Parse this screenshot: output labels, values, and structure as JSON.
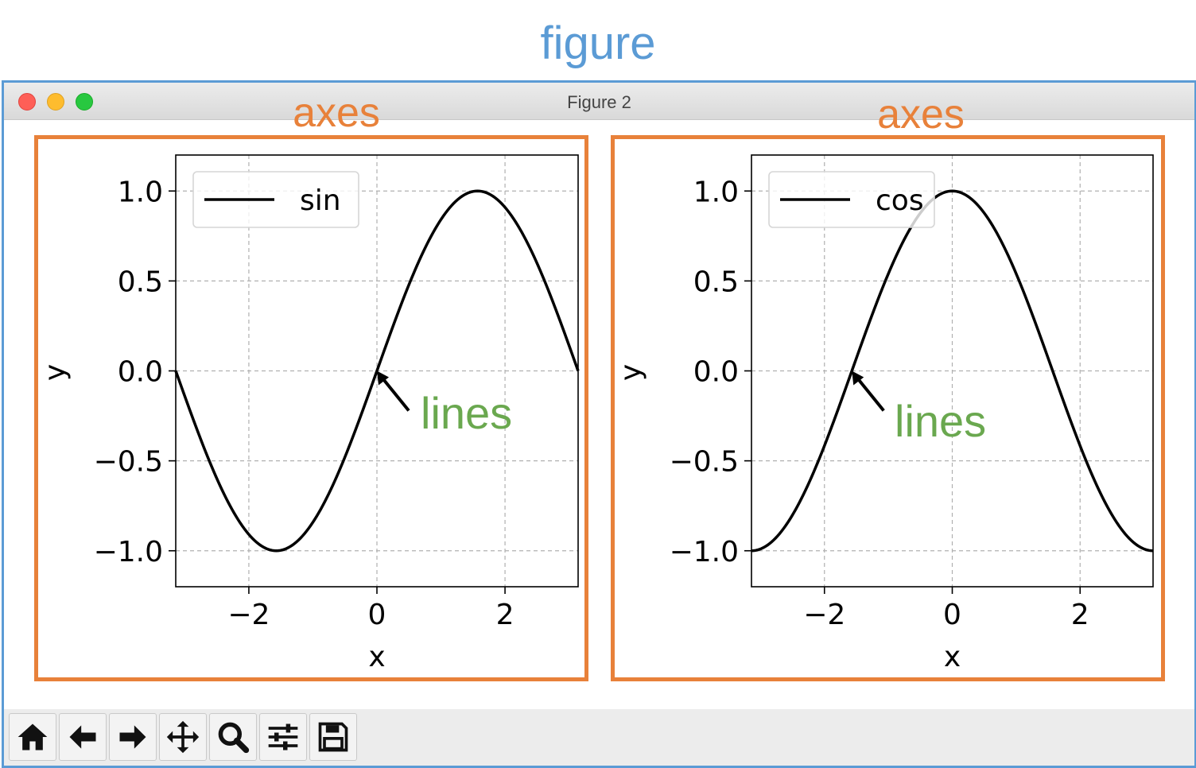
{
  "figure_label": "figure",
  "axes_label": "axes",
  "lines_label": "lines",
  "window": {
    "title": "Figure 2"
  },
  "colors": {
    "figure": "#5b9bd5",
    "axes": "#e8813a",
    "lines": "#6aa84f",
    "series": "#000000",
    "grid": "#b0b0b0"
  },
  "toolbar": {
    "buttons": [
      {
        "name": "home",
        "icon": "home-icon"
      },
      {
        "name": "back",
        "icon": "arrow-left-icon"
      },
      {
        "name": "forward",
        "icon": "arrow-right-icon"
      },
      {
        "name": "pan",
        "icon": "move-icon"
      },
      {
        "name": "zoom",
        "icon": "magnifier-icon"
      },
      {
        "name": "configure-subplots",
        "icon": "sliders-icon"
      },
      {
        "name": "save",
        "icon": "floppy-icon"
      }
    ]
  },
  "chart_data": [
    {
      "type": "line",
      "function": "sin",
      "title": "",
      "xlabel": "x",
      "ylabel": "y",
      "xlim": [
        -3.14159,
        3.14159
      ],
      "ylim": [
        -1.2,
        1.2
      ],
      "xticks": [
        -2,
        0,
        2
      ],
      "xtick_labels": [
        "−2",
        "0",
        "2"
      ],
      "yticks": [
        1.0,
        0.5,
        0.0,
        -0.5,
        -1.0
      ],
      "ytick_labels": [
        "1.0",
        "0.5",
        "0.0",
        "−0.5",
        "−1.0"
      ],
      "grid": true,
      "legend_position": "upper-left",
      "series": [
        {
          "name": "sin",
          "x": [
            -3.1416,
            -2.7489,
            -2.3562,
            -1.9635,
            -1.5708,
            -1.1781,
            -0.7854,
            -0.3927,
            0.0,
            0.3927,
            0.7854,
            1.1781,
            1.5708,
            1.9635,
            2.3562,
            2.7489,
            3.1416
          ],
          "y": [
            0.0,
            -0.3827,
            -0.7071,
            -0.9239,
            -1.0,
            -0.9239,
            -0.7071,
            -0.3827,
            0.0,
            0.3827,
            0.7071,
            0.9239,
            1.0,
            0.9239,
            0.7071,
            0.3827,
            0.0
          ]
        }
      ],
      "annotation": {
        "text": "lines",
        "points_to": [
          0.0,
          0.0
        ]
      }
    },
    {
      "type": "line",
      "function": "cos",
      "title": "",
      "xlabel": "x",
      "ylabel": "y",
      "xlim": [
        -3.14159,
        3.14159
      ],
      "ylim": [
        -1.2,
        1.2
      ],
      "xticks": [
        -2,
        0,
        2
      ],
      "xtick_labels": [
        "−2",
        "0",
        "2"
      ],
      "yticks": [
        1.0,
        0.5,
        0.0,
        -0.5,
        -1.0
      ],
      "ytick_labels": [
        "1.0",
        "0.5",
        "0.0",
        "−0.5",
        "−1.0"
      ],
      "grid": true,
      "legend_position": "upper-left",
      "series": [
        {
          "name": "cos",
          "x": [
            -3.1416,
            -2.7489,
            -2.3562,
            -1.9635,
            -1.5708,
            -1.1781,
            -0.7854,
            -0.3927,
            0.0,
            0.3927,
            0.7854,
            1.1781,
            1.5708,
            1.9635,
            2.3562,
            2.7489,
            3.1416
          ],
          "y": [
            -1.0,
            -0.9239,
            -0.7071,
            -0.3827,
            0.0,
            0.3827,
            0.7071,
            0.9239,
            1.0,
            0.9239,
            0.7071,
            0.3827,
            0.0,
            -0.3827,
            -0.7071,
            -0.9239,
            -1.0
          ]
        }
      ],
      "annotation": {
        "text": "lines",
        "points_to": [
          -1.5708,
          0.0
        ]
      }
    }
  ]
}
